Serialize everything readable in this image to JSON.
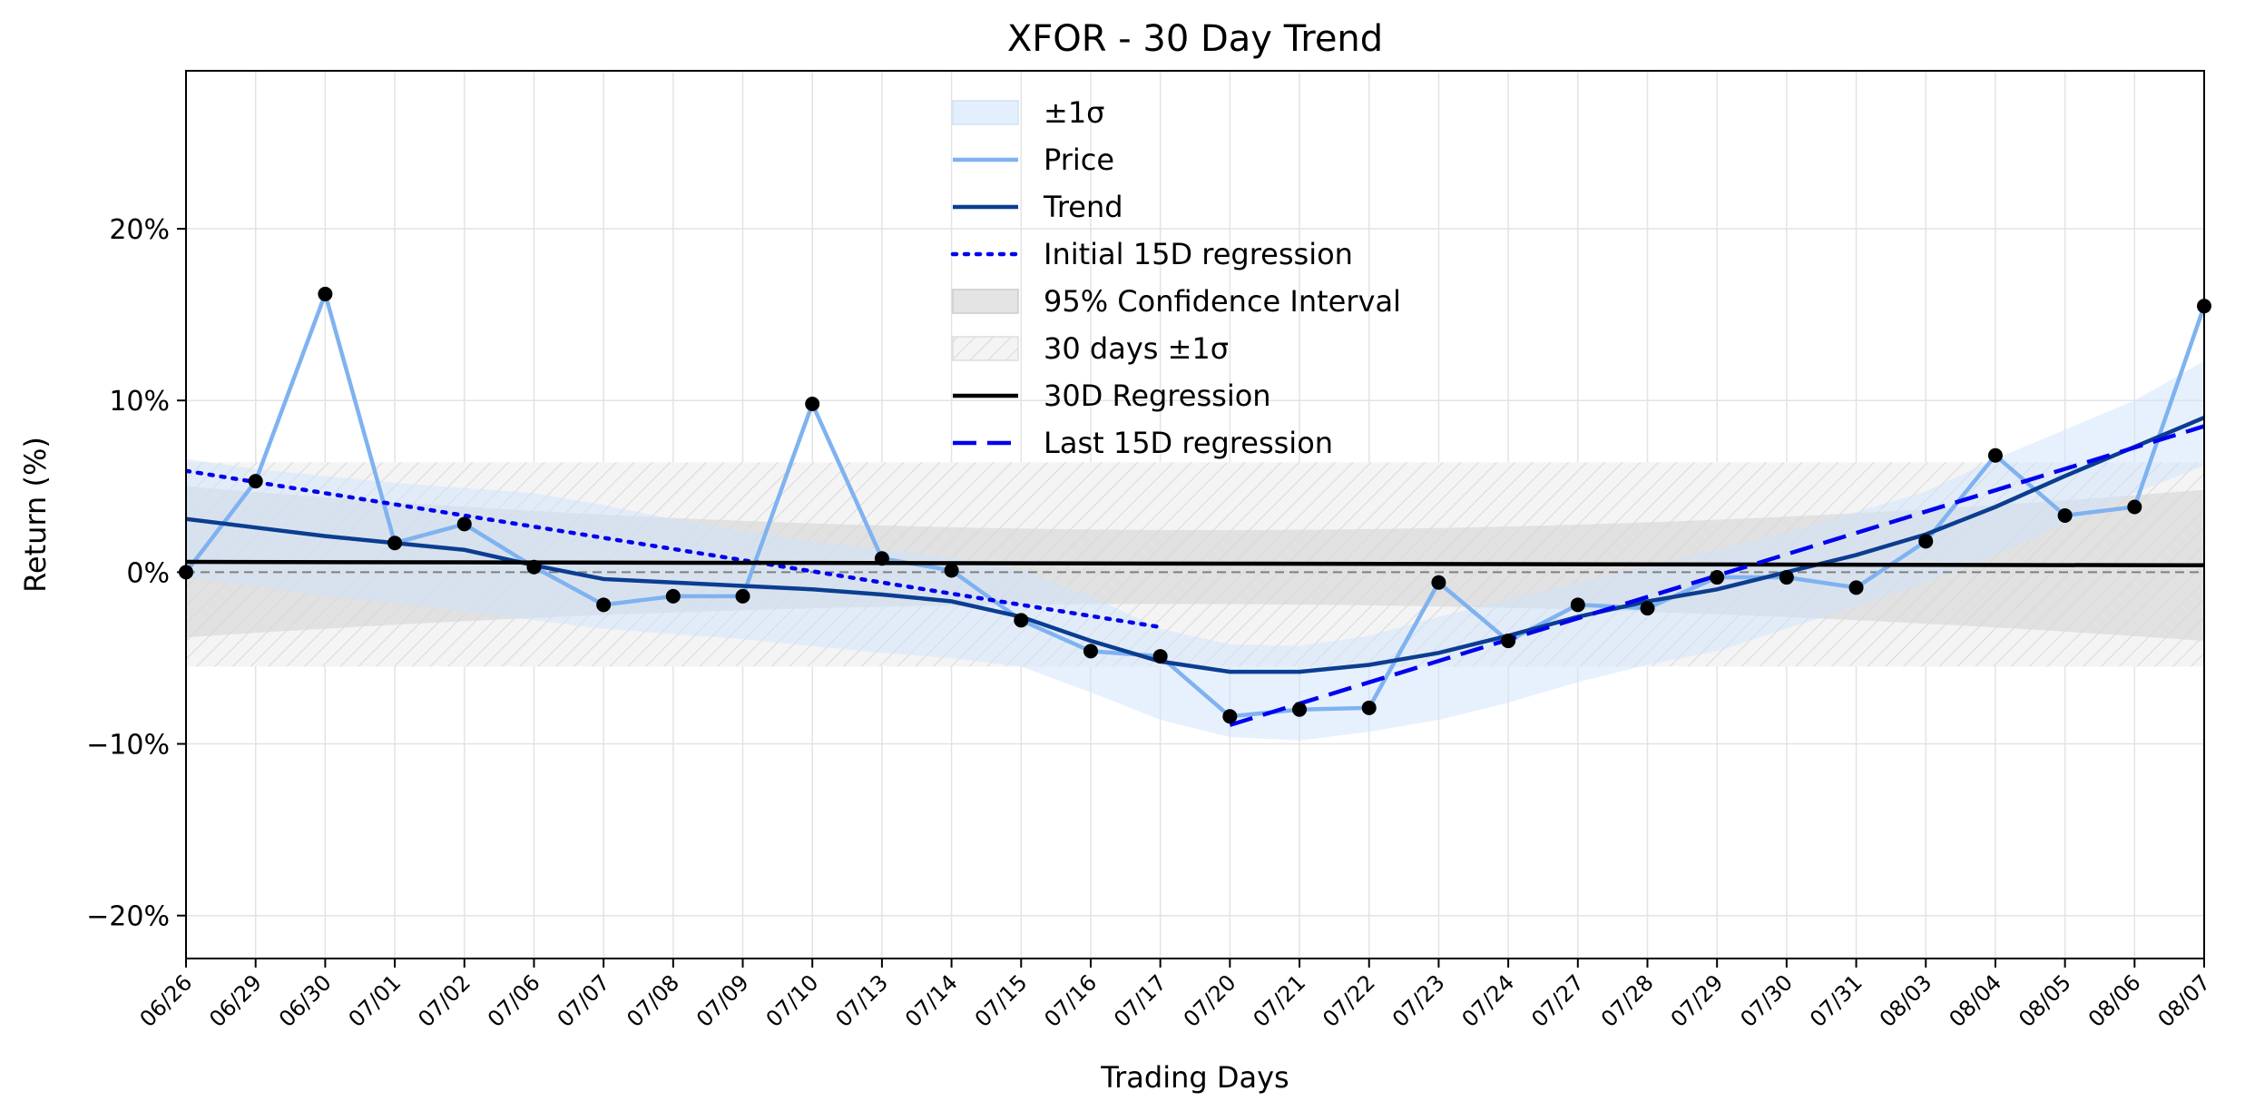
{
  "chart_data": {
    "type": "line",
    "title": "XFOR - 30 Day Trend",
    "xlabel": "Trading Days",
    "ylabel": "Return (%)",
    "ylim": [
      -22.5,
      29.2
    ],
    "yticks": [
      -20,
      -10,
      0,
      10,
      20
    ],
    "ytick_labels": [
      "−20%",
      "−10%",
      "0%",
      "10%",
      "20%"
    ],
    "grid": true,
    "legend_position": "top-center",
    "categories": [
      "06/26",
      "06/29",
      "06/30",
      "07/01",
      "07/02",
      "07/06",
      "07/07",
      "07/08",
      "07/09",
      "07/10",
      "07/13",
      "07/14",
      "07/15",
      "07/16",
      "07/17",
      "07/20",
      "07/21",
      "07/22",
      "07/23",
      "07/24",
      "07/27",
      "07/28",
      "07/29",
      "07/30",
      "07/31",
      "08/03",
      "08/04",
      "08/05",
      "08/06",
      "08/07"
    ],
    "series": [
      {
        "name": "Price",
        "color": "#7fb2f0",
        "values": [
          0.0,
          5.3,
          16.2,
          1.7,
          2.8,
          0.3,
          -1.9,
          -1.4,
          -1.4,
          9.8,
          0.8,
          0.1,
          -2.8,
          -4.6,
          -4.9,
          -8.4,
          -8.0,
          -7.9,
          -0.6,
          -4.0,
          -1.9,
          -2.1,
          -0.3,
          -0.3,
          -0.9,
          1.8,
          6.8,
          3.3,
          3.8,
          15.5
        ]
      },
      {
        "name": "Trend",
        "color": "#0b3d91",
        "values": [
          3.1,
          2.6,
          2.1,
          1.7,
          1.3,
          0.4,
          -0.4,
          -0.6,
          -0.8,
          -1.0,
          -1.3,
          -1.7,
          -2.6,
          -4.0,
          -5.2,
          -5.8,
          -5.8,
          -5.4,
          -4.7,
          -3.7,
          -2.6,
          -1.7,
          -1.0,
          0.0,
          1.0,
          2.2,
          3.8,
          5.6,
          7.3,
          9.0
        ]
      },
      {
        "name": "Initial 15D regression",
        "color": "#0000ee",
        "x_range": [
          0,
          14
        ],
        "values_at_ends": [
          5.9,
          -3.2
        ]
      },
      {
        "name": "30D Regression",
        "color": "#000000",
        "x_range": [
          0,
          29
        ],
        "values_at_ends": [
          0.6,
          0.4
        ]
      },
      {
        "name": "Last 15D regression",
        "color": "#0000ee",
        "x_range": [
          15,
          29
        ],
        "values_at_ends": [
          -8.9,
          8.5
        ]
      }
    ],
    "bands": [
      {
        "name": "±1σ",
        "color": "#d6e8fb",
        "upper": [
          6.6,
          6.0,
          5.6,
          5.2,
          4.9,
          4.6,
          3.9,
          3.1,
          2.4,
          1.8,
          1.3,
          0.9,
          0.1,
          -1.4,
          -3.3,
          -4.2,
          -4.3,
          -3.7,
          -2.6,
          -1.6,
          -0.6,
          0.4,
          1.3,
          2.3,
          3.5,
          4.7,
          6.6,
          8.3,
          10.0,
          12.3
        ],
        "lower": [
          -0.3,
          -0.8,
          -1.4,
          -1.8,
          -2.3,
          -2.8,
          -3.3,
          -3.6,
          -3.9,
          -4.3,
          -4.7,
          -5.0,
          -5.5,
          -7.0,
          -8.6,
          -9.6,
          -9.8,
          -9.3,
          -8.6,
          -7.6,
          -6.4,
          -5.4,
          -4.6,
          -3.3,
          -2.0,
          -0.6,
          1.0,
          2.8,
          4.6,
          6.2
        ]
      },
      {
        "name": "95% Confidence Interval",
        "color": "#d9d9d9",
        "x": [
          0,
          29
        ],
        "upper_ends": [
          5.0,
          4.8
        ],
        "lower_ends": [
          -3.8,
          -4.0
        ],
        "mid_upper": 2.5,
        "mid_lower": -1.8
      },
      {
        "name": "30 days ±1σ",
        "color": "#e6e6e6",
        "hatch": true,
        "upper": 6.4,
        "lower": -5.5
      }
    ],
    "legend": [
      "±1σ",
      "Price",
      "Trend",
      "Initial 15D regression",
      "95% Confidence Interval",
      "30 days ±1σ",
      "30D Regression",
      "Last 15D regression"
    ]
  }
}
